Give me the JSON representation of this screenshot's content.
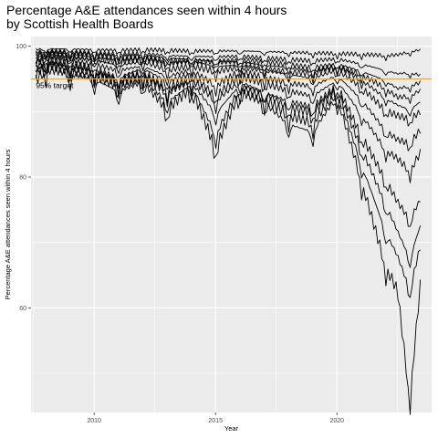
{
  "chart_data": {
    "type": "line",
    "title_lines": [
      "Percentage A&E attendances seen within 4 hours",
      "by Scottish Health Boards"
    ],
    "xlabel": "Year",
    "ylabel": "Percentage A&E attendances seen within 4 hours",
    "xlim": [
      2007.4,
      2023.9
    ],
    "ylim": [
      44,
      101.5
    ],
    "x_ticks": [
      2010,
      2015,
      2020
    ],
    "y_ticks": [
      60,
      80,
      100
    ],
    "grid": true,
    "target": {
      "value": 95,
      "label": "95% target",
      "color": "#ffa500"
    },
    "series_color": "#000000",
    "series": [
      {
        "x": [
          2007.6,
          2008,
          2009,
          2010,
          2011,
          2012,
          2013,
          2014,
          2015,
          2016,
          2017,
          2018,
          2019,
          2020,
          2021,
          2022,
          2022.5,
          2023,
          2023.5
        ],
        "values": [
          99.5,
          99.6,
          99.6,
          99.5,
          99.4,
          99.5,
          99.4,
          99.3,
          99.3,
          99.3,
          99.2,
          99.1,
          99.0,
          98.9,
          98.8,
          98.6,
          98.7,
          99.2,
          99.5
        ]
      },
      {
        "x": [
          2007.6,
          2008,
          2009,
          2010,
          2011,
          2012,
          2013,
          2014,
          2015,
          2016,
          2017,
          2018,
          2019,
          2020,
          2021,
          2022,
          2022.5,
          2023,
          2023.5
        ],
        "values": [
          98.8,
          99.1,
          98.9,
          98.7,
          98.4,
          98.6,
          98.2,
          98.0,
          97.8,
          97.9,
          97.6,
          97.2,
          96.8,
          97.3,
          96.2,
          94.8,
          93.5,
          94.0,
          94.5
        ]
      },
      {
        "x": [
          2007.6,
          2008,
          2009,
          2010,
          2011,
          2012,
          2013,
          2014,
          2015,
          2016,
          2017,
          2018,
          2019,
          2020,
          2021,
          2022,
          2022.5,
          2023,
          2023.5
        ],
        "values": [
          97.8,
          98.6,
          98.3,
          97.9,
          97.1,
          97.7,
          96.4,
          97.0,
          96.2,
          96.8,
          96.3,
          95.7,
          95.1,
          96.4,
          93.8,
          90.2,
          89.4,
          88.9,
          90.1
        ]
      },
      {
        "x": [
          2007.6,
          2008,
          2009,
          2010,
          2011,
          2012,
          2013,
          2014,
          2015,
          2016,
          2017,
          2018,
          2019,
          2020,
          2021,
          2022,
          2022.5,
          2023,
          2023.5
        ],
        "values": [
          98.2,
          98.9,
          98.5,
          98.0,
          97.6,
          98.1,
          97.3,
          97.7,
          96.9,
          97.2,
          96.7,
          96.1,
          95.8,
          96.9,
          94.9,
          92.1,
          91.0,
          90.3,
          91.7
        ]
      },
      {
        "x": [
          2007.6,
          2008,
          2009,
          2010,
          2011,
          2012,
          2013,
          2014,
          2015,
          2016,
          2017,
          2018,
          2019,
          2020,
          2021,
          2022,
          2022.5,
          2023,
          2023.5
        ],
        "values": [
          97.0,
          97.9,
          97.4,
          96.6,
          95.2,
          96.7,
          94.6,
          95.8,
          92.4,
          95.5,
          94.4,
          93.2,
          92.4,
          94.8,
          89.6,
          84.2,
          82.8,
          81.0,
          84.1
        ]
      },
      {
        "x": [
          2007.6,
          2008,
          2009,
          2010,
          2011,
          2012,
          2013,
          2014,
          2015,
          2016,
          2017,
          2018,
          2019,
          2020,
          2021,
          2022,
          2022.5,
          2023,
          2023.5
        ],
        "values": [
          96.4,
          97.5,
          96.9,
          96.2,
          94.8,
          96.0,
          93.6,
          95.1,
          91.7,
          94.6,
          93.0,
          91.6,
          90.7,
          94.0,
          86.4,
          79.6,
          76.2,
          73.5,
          77.0
        ]
      },
      {
        "x": [
          2007.6,
          2008,
          2009,
          2010,
          2011,
          2012,
          2013,
          2014,
          2015,
          2016,
          2017,
          2018,
          2019,
          2020,
          2021,
          2022,
          2022.5,
          2023,
          2023.5
        ],
        "values": [
          95.6,
          97.2,
          96.3,
          95.6,
          93.9,
          95.2,
          91.4,
          94.2,
          86.5,
          93.7,
          92.1,
          89.5,
          88.3,
          93.0,
          82.1,
          71.7,
          67.9,
          62.8,
          70.4
        ]
      },
      {
        "x": [
          2007.6,
          2008,
          2009,
          2010,
          2011,
          2012,
          2013,
          2014,
          2015,
          2016,
          2017,
          2018,
          2019,
          2020,
          2021,
          2022,
          2022.5,
          2023,
          2023.5
        ],
        "values": [
          94.8,
          96.6,
          95.9,
          95.0,
          93.1,
          94.6,
          90.3,
          93.7,
          84.4,
          93.1,
          91.4,
          88.1,
          86.9,
          92.4,
          79.6,
          66.5,
          62.6,
          46.0,
          66.2
        ]
      },
      {
        "x": [
          2007.6,
          2008,
          2009,
          2010,
          2011,
          2012,
          2013,
          2014,
          2015,
          2016,
          2017,
          2018,
          2019,
          2020,
          2021,
          2022,
          2022.5,
          2023,
          2023.5
        ],
        "values": [
          96.1,
          97.6,
          96.8,
          96.0,
          94.4,
          95.6,
          93.0,
          94.6,
          89.7,
          94.1,
          92.9,
          90.6,
          89.9,
          93.5,
          84.5,
          75.9,
          71.7,
          67.6,
          73.3
        ]
      },
      {
        "x": [
          2007.6,
          2008,
          2009,
          2010,
          2011,
          2012,
          2013,
          2014,
          2015,
          2016,
          2017,
          2018,
          2019,
          2020,
          2021,
          2022,
          2022.5,
          2023,
          2023.5
        ],
        "values": [
          97.4,
          98.1,
          97.7,
          97.2,
          96.3,
          97.0,
          95.4,
          96.3,
          94.1,
          96.1,
          95.2,
          94.4,
          93.9,
          95.6,
          91.9,
          87.1,
          85.7,
          85.2,
          87.5
        ]
      },
      {
        "x": [
          2007.6,
          2008,
          2009,
          2010,
          2011,
          2012,
          2013,
          2014,
          2015,
          2016,
          2017,
          2018,
          2019,
          2020,
          2021,
          2022,
          2022.5,
          2023,
          2023.5
        ],
        "values": [
          98.5,
          99.0,
          98.8,
          98.4,
          98.0,
          98.3,
          97.8,
          97.9,
          97.5,
          97.6,
          97.1,
          96.8,
          96.3,
          97.0,
          95.7,
          93.6,
          92.2,
          92.4,
          93.4
        ]
      },
      {
        "x": [
          2007.6,
          2008,
          2009,
          2010,
          2011,
          2012,
          2013,
          2014,
          2015,
          2016,
          2017,
          2018,
          2019,
          2020,
          2021,
          2022,
          2022.5,
          2023,
          2023.5
        ],
        "values": [
          99.1,
          99.3,
          99.2,
          99.0,
          98.8,
          98.9,
          98.6,
          98.5,
          98.4,
          98.5,
          98.2,
          98.0,
          97.8,
          98.1,
          97.3,
          96.3,
          95.8,
          96.0,
          95.5
        ]
      }
    ]
  }
}
